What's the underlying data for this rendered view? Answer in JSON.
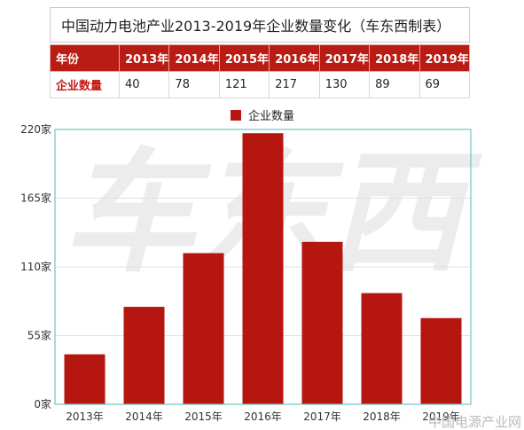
{
  "title": "中国动力电池产业2013-2019年企业数量变化（车东西制表）",
  "table": {
    "header_label": "年份",
    "row_label": "企业数量",
    "years": [
      "2013年",
      "2014年",
      "2015年",
      "2016年",
      "2017年",
      "2018年",
      "2019年"
    ],
    "values": [
      "40",
      "78",
      "121",
      "217",
      "130",
      "89",
      "69"
    ]
  },
  "legend": {
    "label": "企业数量"
  },
  "watermark_text": "车东西",
  "source_watermark": "中国电源产业网",
  "colors": {
    "bar": "#b5160f",
    "header_bg": "#b91c14",
    "plot_border": "#6fc6c3"
  },
  "chart_data": {
    "type": "bar",
    "title": "",
    "xlabel": "",
    "ylabel": "",
    "categories": [
      "2013年",
      "2014年",
      "2015年",
      "2016年",
      "2017年",
      "2018年",
      "2019年"
    ],
    "series": [
      {
        "name": "企业数量",
        "values": [
          40,
          78,
          121,
          217,
          130,
          89,
          69
        ]
      }
    ],
    "ylim": [
      0,
      220
    ],
    "yticks": [
      0,
      55,
      110,
      165,
      220
    ],
    "ytick_labels": [
      "0家",
      "55家",
      "110家",
      "165家",
      "220家"
    ],
    "grid": true,
    "legend_position": "top"
  }
}
